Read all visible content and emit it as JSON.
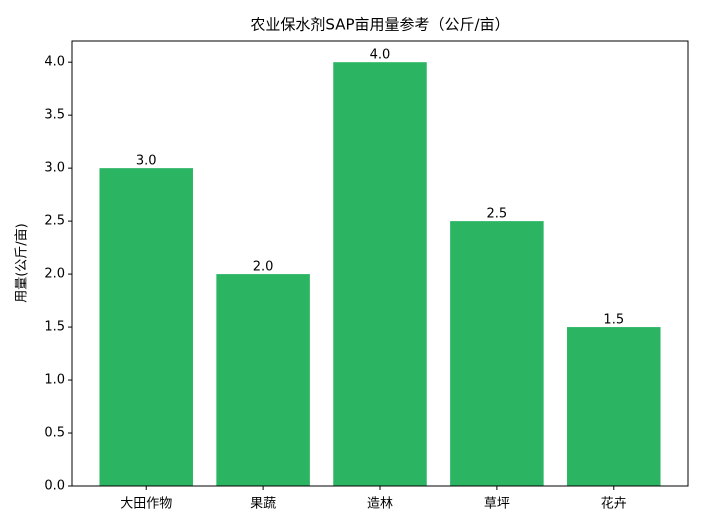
{
  "chart_data": {
    "type": "bar",
    "title": "农业保水剂SAP亩用量参考（公斤/亩）",
    "y_label": "用量(公斤/亩)",
    "categories": [
      "大田作物",
      "果蔬",
      "造林",
      "草坪",
      "花卉"
    ],
    "values": [
      3.0,
      2.0,
      4.0,
      2.5,
      1.5
    ],
    "value_labels": [
      "3.0",
      "2.0",
      "4.0",
      "2.5",
      "1.5"
    ],
    "color": "#2bb563",
    "ylim": [
      0,
      4.2
    ],
    "yticks": [
      {
        "value": 0,
        "label": "0.0"
      },
      {
        "value": 0.5,
        "label": "0.5"
      },
      {
        "value": 1,
        "label": "1.0"
      },
      {
        "value": 1.5,
        "label": "1.5"
      },
      {
        "value": 2,
        "label": "2.0"
      },
      {
        "value": 2.5,
        "label": "2.5"
      },
      {
        "value": 3,
        "label": "3.0"
      },
      {
        "value": 3.5,
        "label": "3.5"
      },
      {
        "value": 4,
        "label": "4.0"
      }
    ],
    "grid": false
  }
}
